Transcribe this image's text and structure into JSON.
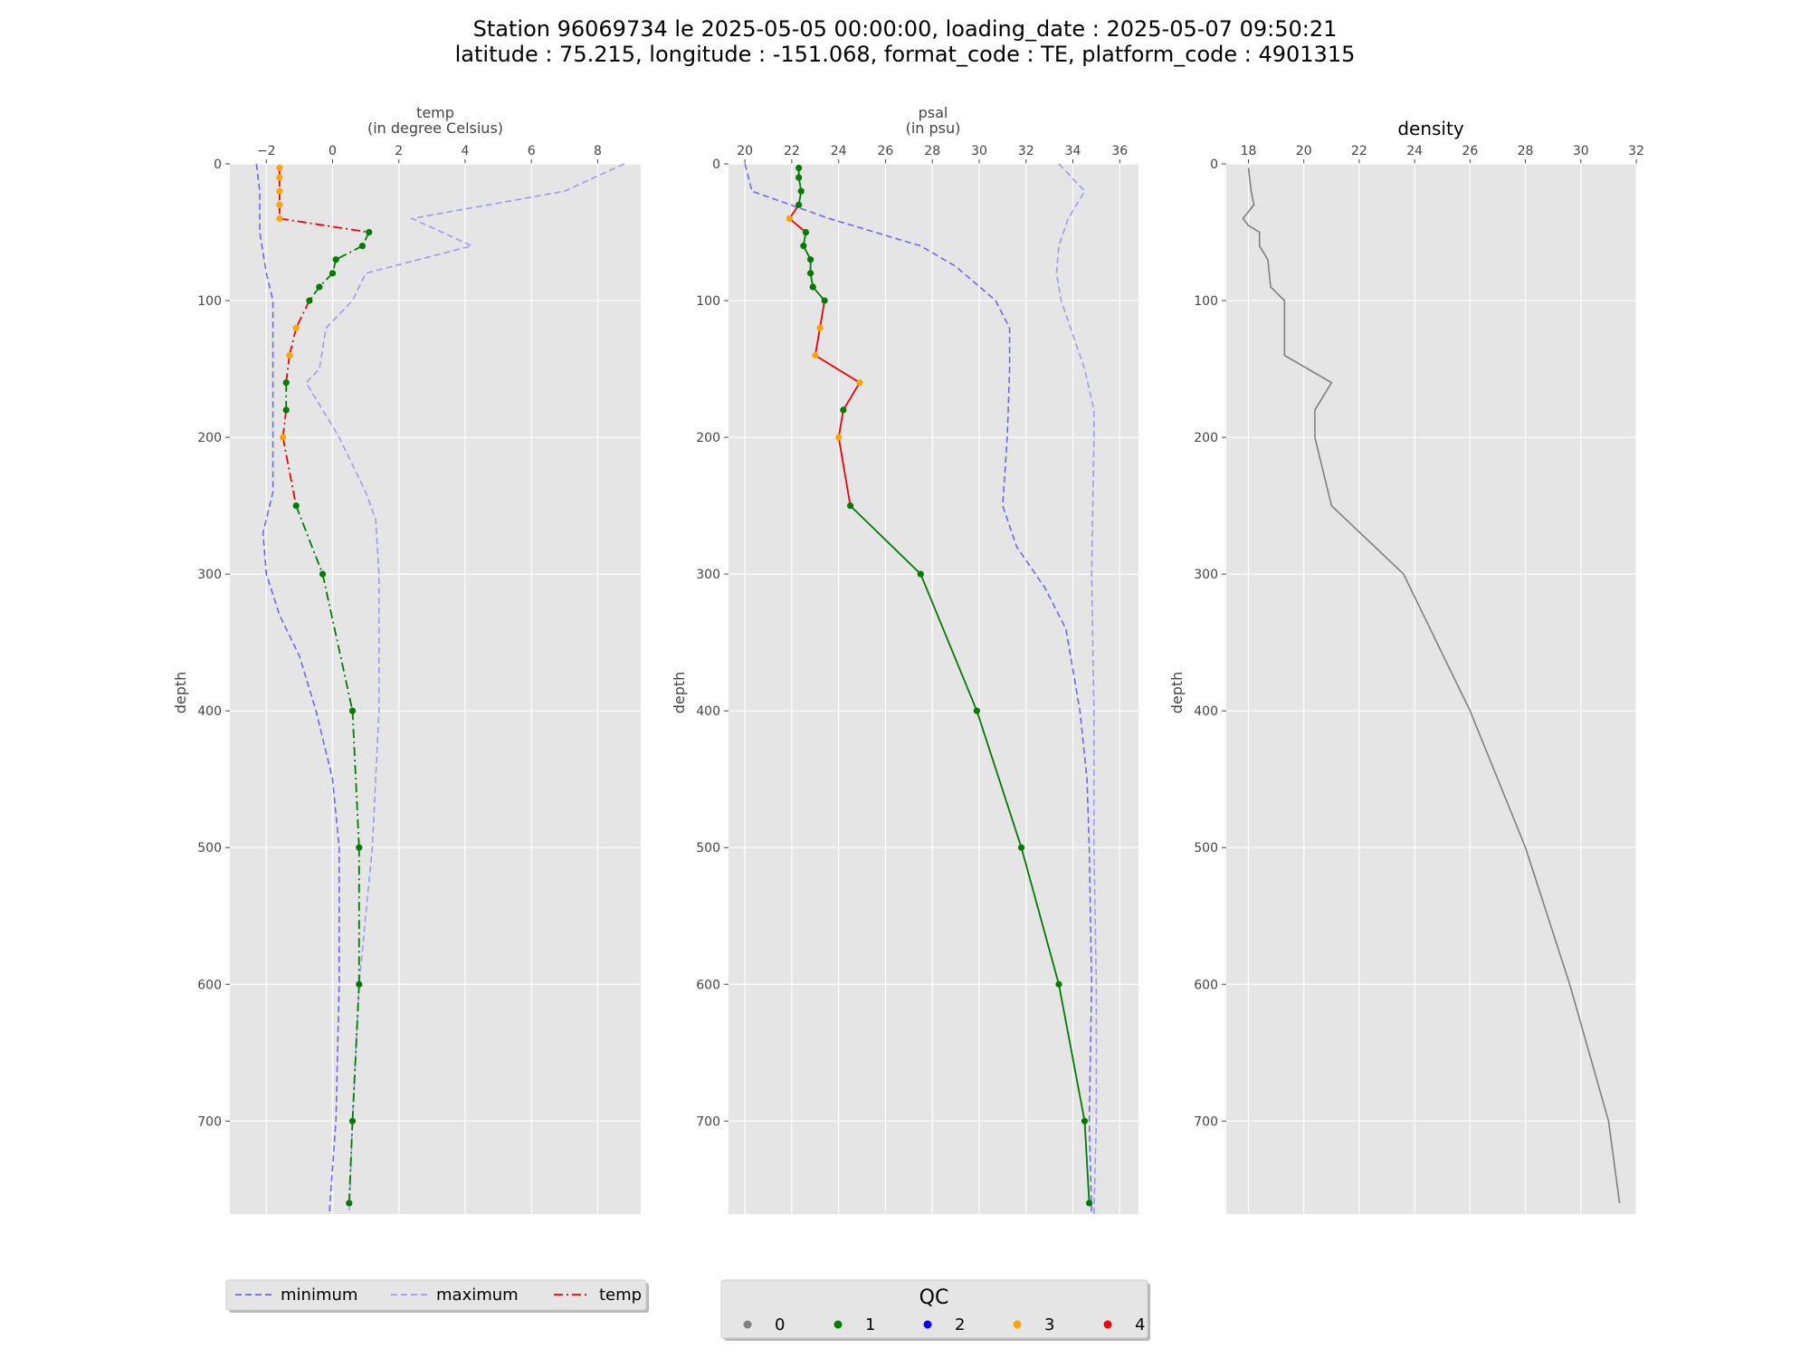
{
  "title": {
    "line1": "Station 96069734 le 2025-05-05 00:00:00, loading_date : 2025-05-07 09:50:21",
    "line2": "latitude : 75.215, longitude : -151.068, format_code : TE, platform_code : 4901315"
  },
  "colors": {
    "panel_bg": "#e5e5e5",
    "grid": "#ffffff",
    "minimum": "#6b6bea",
    "maximum": "#9d9df0",
    "temp": "#e8000b",
    "psal": "#e8000b",
    "density": "#808080",
    "qc0": "#808080",
    "qc1": "#007a00",
    "qc2": "#0000ee",
    "qc3": "#ffa500",
    "qc4": "#e8000b"
  },
  "chart_data": [
    {
      "type": "line",
      "id": "temp",
      "xlabel": "temp",
      "xlabel_unit": "(in degree Celsius)",
      "ylabel": "depth",
      "xlim": [
        -3.1,
        9.3
      ],
      "ylim": [
        768,
        0
      ],
      "xticks": [
        -2,
        0,
        2,
        4,
        6,
        8
      ],
      "xtick_labels": [
        "−2",
        "0",
        "2",
        "4",
        "6",
        "8"
      ],
      "yticks": [
        0,
        100,
        200,
        300,
        400,
        500,
        600,
        700
      ],
      "grid": true,
      "series": [
        {
          "name": "minimum",
          "style": "dashed",
          "points": [
            [
              -2.3,
              0
            ],
            [
              -2.2,
              20
            ],
            [
              -2.2,
              50
            ],
            [
              -2.0,
              80
            ],
            [
              -1.8,
              100
            ],
            [
              -1.8,
              150
            ],
            [
              -1.8,
              200
            ],
            [
              -1.8,
              240
            ],
            [
              -2.1,
              270
            ],
            [
              -2.0,
              300
            ],
            [
              -1.6,
              330
            ],
            [
              -1.0,
              360
            ],
            [
              -0.5,
              400
            ],
            [
              0.0,
              450
            ],
            [
              0.2,
              500
            ],
            [
              0.2,
              600
            ],
            [
              0.1,
              700
            ],
            [
              -0.1,
              768
            ]
          ]
        },
        {
          "name": "maximum",
          "style": "dashed",
          "points": [
            [
              8.8,
              0
            ],
            [
              7.0,
              20
            ],
            [
              2.4,
              40
            ],
            [
              4.2,
              60
            ],
            [
              1.0,
              80
            ],
            [
              0.6,
              100
            ],
            [
              -0.2,
              120
            ],
            [
              -0.4,
              150
            ],
            [
              -0.8,
              160
            ],
            [
              0.2,
              200
            ],
            [
              1.0,
              240
            ],
            [
              1.3,
              260
            ],
            [
              1.4,
              300
            ],
            [
              1.4,
              400
            ],
            [
              1.2,
              500
            ],
            [
              0.8,
              600
            ],
            [
              0.6,
              700
            ],
            [
              0.5,
              768
            ]
          ]
        },
        {
          "name": "temp",
          "style": "dashdot",
          "points": [
            [
              -1.6,
              3
            ],
            [
              -1.6,
              10
            ],
            [
              -1.6,
              20
            ],
            [
              -1.6,
              30
            ],
            [
              -1.6,
              40
            ],
            [
              1.1,
              50
            ],
            [
              0.9,
              60
            ],
            [
              0.1,
              70
            ],
            [
              0.0,
              80
            ],
            [
              -0.4,
              90
            ],
            [
              -0.7,
              100
            ],
            [
              -1.1,
              120
            ],
            [
              -1.3,
              140
            ],
            [
              -1.4,
              160
            ],
            [
              -1.4,
              180
            ],
            [
              -1.5,
              200
            ],
            [
              -1.1,
              250
            ],
            [
              -0.3,
              300
            ],
            [
              0.6,
              400
            ],
            [
              0.8,
              500
            ],
            [
              0.8,
              600
            ],
            [
              0.6,
              700
            ],
            [
              0.5,
              760
            ]
          ],
          "qc": [
            3,
            3,
            3,
            3,
            3,
            1,
            1,
            1,
            1,
            1,
            1,
            3,
            3,
            1,
            1,
            3,
            1,
            1,
            1,
            1,
            1,
            1,
            1
          ]
        }
      ]
    },
    {
      "type": "line",
      "id": "psal",
      "xlabel": "psal",
      "xlabel_unit": "(in psu)",
      "ylabel": "depth",
      "xlim": [
        19.3,
        36.8
      ],
      "ylim": [
        768,
        0
      ],
      "xticks": [
        20,
        22,
        24,
        26,
        28,
        30,
        32,
        34,
        36
      ],
      "xtick_labels": [
        "20",
        "22",
        "24",
        "26",
        "28",
        "30",
        "32",
        "34",
        "36"
      ],
      "yticks": [
        0,
        100,
        200,
        300,
        400,
        500,
        600,
        700
      ],
      "grid": true,
      "series": [
        {
          "name": "minimum",
          "style": "dashed",
          "points": [
            [
              20.0,
              0
            ],
            [
              20.3,
              20
            ],
            [
              23.6,
              40
            ],
            [
              27.5,
              60
            ],
            [
              29.0,
              75
            ],
            [
              30.7,
              100
            ],
            [
              31.3,
              120
            ],
            [
              31.3,
              150
            ],
            [
              31.2,
              200
            ],
            [
              31.0,
              250
            ],
            [
              31.6,
              280
            ],
            [
              32.8,
              310
            ],
            [
              33.7,
              340
            ],
            [
              34.3,
              400
            ],
            [
              34.6,
              450
            ],
            [
              34.7,
              500
            ],
            [
              34.8,
              600
            ],
            [
              34.7,
              700
            ],
            [
              34.8,
              768
            ]
          ]
        },
        {
          "name": "maximum",
          "style": "dashed",
          "points": [
            [
              33.4,
              0
            ],
            [
              34.5,
              20
            ],
            [
              33.8,
              40
            ],
            [
              33.4,
              60
            ],
            [
              33.3,
              80
            ],
            [
              33.5,
              100
            ],
            [
              33.9,
              120
            ],
            [
              34.5,
              150
            ],
            [
              34.9,
              180
            ],
            [
              34.9,
              200
            ],
            [
              34.8,
              300
            ],
            [
              34.9,
              400
            ],
            [
              34.9,
              500
            ],
            [
              35.0,
              600
            ],
            [
              35.0,
              700
            ],
            [
              34.9,
              768
            ]
          ]
        },
        {
          "name": "psal",
          "style": "solid",
          "points": [
            [
              22.3,
              3
            ],
            [
              22.3,
              10
            ],
            [
              22.4,
              20
            ],
            [
              22.3,
              30
            ],
            [
              21.9,
              40
            ],
            [
              22.6,
              50
            ],
            [
              22.5,
              60
            ],
            [
              22.8,
              70
            ],
            [
              22.8,
              80
            ],
            [
              22.9,
              90
            ],
            [
              23.4,
              100
            ],
            [
              23.2,
              120
            ],
            [
              23.0,
              140
            ],
            [
              24.9,
              160
            ],
            [
              24.2,
              180
            ],
            [
              24.0,
              200
            ],
            [
              24.5,
              250
            ],
            [
              27.5,
              300
            ],
            [
              29.9,
              400
            ],
            [
              31.8,
              500
            ],
            [
              33.4,
              600
            ],
            [
              34.5,
              700
            ],
            [
              34.7,
              760
            ]
          ],
          "qc": [
            1,
            1,
            1,
            1,
            3,
            1,
            1,
            1,
            1,
            1,
            1,
            3,
            3,
            3,
            1,
            3,
            1,
            1,
            1,
            1,
            1,
            1,
            1
          ]
        }
      ]
    },
    {
      "type": "line",
      "id": "density",
      "title": "density",
      "ylabel": "depth",
      "xlim": [
        17.2,
        32.0
      ],
      "ylim": [
        768,
        0
      ],
      "xticks": [
        18,
        20,
        22,
        24,
        26,
        28,
        30,
        32
      ],
      "xtick_labels": [
        "18",
        "20",
        "22",
        "24",
        "26",
        "28",
        "30",
        "32"
      ],
      "yticks": [
        0,
        100,
        200,
        300,
        400,
        500,
        600,
        700
      ],
      "grid": true,
      "series": [
        {
          "name": "density",
          "style": "solid",
          "points": [
            [
              18.0,
              3
            ],
            [
              18.1,
              20
            ],
            [
              18.2,
              30
            ],
            [
              17.8,
              40
            ],
            [
              18.0,
              45
            ],
            [
              18.4,
              50
            ],
            [
              18.4,
              60
            ],
            [
              18.7,
              70
            ],
            [
              18.8,
              90
            ],
            [
              19.3,
              100
            ],
            [
              19.3,
              120
            ],
            [
              19.3,
              140
            ],
            [
              21.0,
              160
            ],
            [
              20.4,
              180
            ],
            [
              20.4,
              200
            ],
            [
              21.0,
              250
            ],
            [
              23.6,
              300
            ],
            [
              26.0,
              400
            ],
            [
              28.0,
              500
            ],
            [
              29.6,
              600
            ],
            [
              31.0,
              700
            ],
            [
              31.4,
              760
            ]
          ]
        }
      ]
    }
  ],
  "legend_lines": {
    "entries": [
      {
        "label": "minimum",
        "style": "dashed",
        "color_key": "minimum"
      },
      {
        "label": "maximum",
        "style": "dashed",
        "color_key": "maximum"
      },
      {
        "label": "temp",
        "style": "dashdot",
        "color_key": "temp"
      }
    ]
  },
  "legend_qc": {
    "title": "QC",
    "entries": [
      {
        "label": "0",
        "color_key": "qc0"
      },
      {
        "label": "1",
        "color_key": "qc1"
      },
      {
        "label": "2",
        "color_key": "qc2"
      },
      {
        "label": "3",
        "color_key": "qc3"
      },
      {
        "label": "4",
        "color_key": "qc4"
      }
    ]
  }
}
